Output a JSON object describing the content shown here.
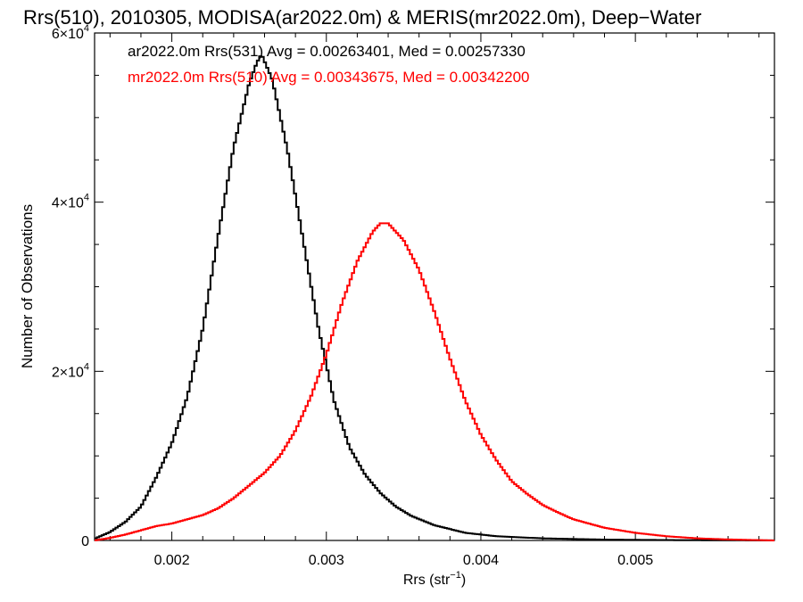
{
  "chart_data": {
    "type": "line",
    "style": "step-histogram",
    "title": "Rrs(510), 2010305, MODISA(ar2022.0m) & MERIS(mr2022.0m), Deep−Water",
    "xlabel": "Rrs (str",
    "xlabel_sup": "−1",
    "xlabel_close": ")",
    "ylabel": "Number of Observations",
    "xlim": [
      0.0015,
      0.0059
    ],
    "ylim": [
      0,
      60000
    ],
    "grid": false,
    "x_ticks": [
      {
        "value": 0.002,
        "label": "0.002"
      },
      {
        "value": 0.003,
        "label": "0.003"
      },
      {
        "value": 0.004,
        "label": "0.004"
      },
      {
        "value": 0.005,
        "label": "0.005"
      }
    ],
    "y_ticks": [
      {
        "value": 0,
        "mantissa": "0",
        "exp": ""
      },
      {
        "value": 20000,
        "mantissa": "2×10",
        "exp": "4"
      },
      {
        "value": 40000,
        "mantissa": "4×10",
        "exp": "4"
      },
      {
        "value": 60000,
        "mantissa": "6×10",
        "exp": "4"
      }
    ],
    "legend_position": "top-left",
    "series": [
      {
        "name": "ar2022.0m Rrs(531) Avg = 0.00263401, Med = 0.00257330",
        "color": "#000000",
        "points": [
          [
            0.0015,
            200
          ],
          [
            0.0016,
            1000
          ],
          [
            0.0017,
            2200
          ],
          [
            0.0018,
            4000
          ],
          [
            0.0019,
            7500
          ],
          [
            0.002,
            11500
          ],
          [
            0.0021,
            17000
          ],
          [
            0.0022,
            25000
          ],
          [
            0.0023,
            36000
          ],
          [
            0.0024,
            46500
          ],
          [
            0.0025,
            54000
          ],
          [
            0.00255,
            56500
          ],
          [
            0.00258,
            57500
          ],
          [
            0.00265,
            54500
          ],
          [
            0.00275,
            46000
          ],
          [
            0.00285,
            35500
          ],
          [
            0.00295,
            25000
          ],
          [
            0.00305,
            16500
          ],
          [
            0.00315,
            11000
          ],
          [
            0.00325,
            7800
          ],
          [
            0.00335,
            5600
          ],
          [
            0.00345,
            4000
          ],
          [
            0.00355,
            2900
          ],
          [
            0.0037,
            1800
          ],
          [
            0.0039,
            900
          ],
          [
            0.0041,
            500
          ],
          [
            0.0044,
            250
          ],
          [
            0.0048,
            100
          ],
          [
            0.0053,
            40
          ],
          [
            0.0059,
            10
          ]
        ]
      },
      {
        "name": "mr2022.0m Rrs(510) Avg = 0.00343675, Med = 0.00342200",
        "color": "#ff0000",
        "points": [
          [
            0.0015,
            0
          ],
          [
            0.0016,
            300
          ],
          [
            0.0017,
            700
          ],
          [
            0.0018,
            1200
          ],
          [
            0.0019,
            1700
          ],
          [
            0.002,
            2000
          ],
          [
            0.0021,
            2500
          ],
          [
            0.0022,
            3000
          ],
          [
            0.0023,
            3800
          ],
          [
            0.0024,
            5000
          ],
          [
            0.0025,
            6500
          ],
          [
            0.0026,
            8000
          ],
          [
            0.0027,
            10000
          ],
          [
            0.0028,
            13000
          ],
          [
            0.0029,
            17000
          ],
          [
            0.003,
            22000
          ],
          [
            0.0031,
            28000
          ],
          [
            0.0032,
            33000
          ],
          [
            0.0033,
            36500
          ],
          [
            0.00335,
            37500
          ],
          [
            0.0034,
            37500
          ],
          [
            0.0035,
            35500
          ],
          [
            0.0036,
            32000
          ],
          [
            0.0037,
            27000
          ],
          [
            0.0038,
            21500
          ],
          [
            0.0039,
            16500
          ],
          [
            0.004,
            12500
          ],
          [
            0.0041,
            9500
          ],
          [
            0.0042,
            7000
          ],
          [
            0.0043,
            5500
          ],
          [
            0.0044,
            4200
          ],
          [
            0.0045,
            3300
          ],
          [
            0.0046,
            2500
          ],
          [
            0.0047,
            2000
          ],
          [
            0.0048,
            1500
          ],
          [
            0.005,
            900
          ],
          [
            0.0052,
            500
          ],
          [
            0.0054,
            250
          ],
          [
            0.0056,
            120
          ],
          [
            0.0059,
            0
          ]
        ]
      }
    ]
  }
}
